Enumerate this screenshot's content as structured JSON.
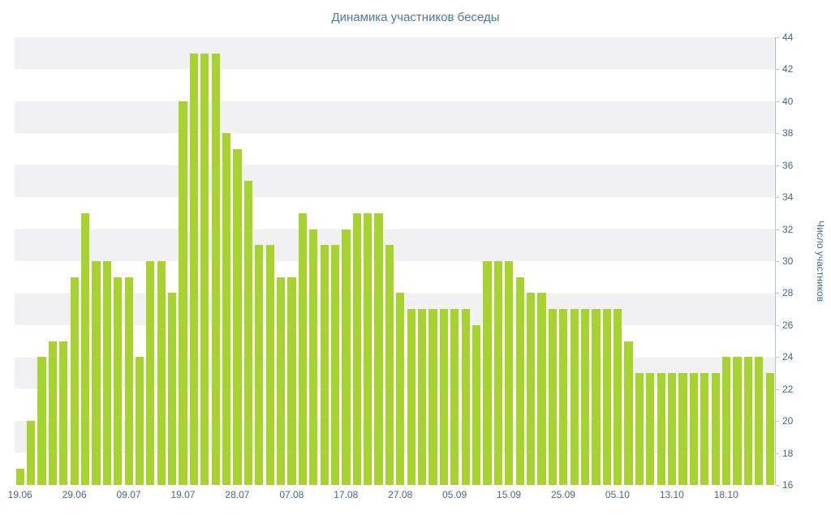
{
  "colors": {
    "bar": "#a8d22f",
    "axis_text": "#44688e",
    "title_text": "#4a7aa7",
    "axis_line": "#b4c7da",
    "stripe": "#f1f1f3"
  },
  "chart_data": {
    "type": "bar",
    "title": "Динамика участников беседы",
    "xlabel": "",
    "ylabel": "Число участников",
    "ylim": [
      16,
      44
    ],
    "y_ticks": [
      16,
      18,
      20,
      22,
      24,
      26,
      28,
      30,
      32,
      34,
      36,
      38,
      40,
      42,
      44
    ],
    "grid": "alternating horizontal bands, legend none",
    "x_tick_labels": [
      "19.06",
      "29.06",
      "09.07",
      "19.07",
      "28.07",
      "07.08",
      "17.08",
      "27.08",
      "05.09",
      "15.09",
      "25.09",
      "05.10",
      "13.10",
      "18.10"
    ],
    "x_tick_indices": [
      0,
      5,
      10,
      15,
      20,
      25,
      30,
      35,
      40,
      45,
      50,
      55,
      60,
      65
    ],
    "values": [
      17,
      20,
      24,
      25,
      25,
      29,
      33,
      30,
      30,
      29,
      29,
      24,
      30,
      30,
      28,
      40,
      43,
      43,
      43,
      38,
      37,
      35,
      31,
      31,
      29,
      29,
      33,
      32,
      31,
      31,
      32,
      33,
      33,
      33,
      31,
      28,
      27,
      27,
      27,
      27,
      27,
      27,
      26,
      30,
      30,
      30,
      29,
      28,
      28,
      27,
      27,
      27,
      27,
      27,
      27,
      27,
      25,
      23,
      23,
      23,
      23,
      23,
      23,
      23,
      23,
      24,
      24,
      24,
      24,
      23
    ]
  }
}
